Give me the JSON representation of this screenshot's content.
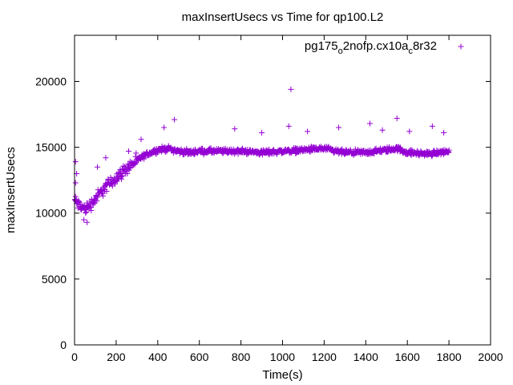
{
  "chart_data": {
    "type": "scatter",
    "title": "maxInsertUsecs vs Time for qp100.L2",
    "xlabel": "Time(s)",
    "ylabel": "maxInsertUsecs",
    "xlim": [
      0,
      2000
    ],
    "ylim": [
      0,
      23500
    ],
    "x_ticks": [
      0,
      200,
      400,
      600,
      800,
      1000,
      1200,
      1400,
      1600,
      1800,
      2000
    ],
    "y_ticks": [
      0,
      5000,
      10000,
      15000,
      20000
    ],
    "grid": false,
    "legend_position": "top-right",
    "marker": "plus",
    "series": [
      {
        "name": "pg175_o2nofp.cx10a_c8r32",
        "name_parts": {
          "a": "pg175",
          "b": "o",
          "c": "2nofp.cx10a",
          "d": "c",
          "e": "8r32"
        },
        "color": "#9400d3",
        "trend": [
          [
            0,
            11000
          ],
          [
            20,
            10600
          ],
          [
            50,
            10300
          ],
          [
            80,
            10700
          ],
          [
            110,
            11300
          ],
          [
            150,
            12000
          ],
          [
            200,
            12700
          ],
          [
            250,
            13400
          ],
          [
            300,
            14000
          ],
          [
            350,
            14500
          ],
          [
            400,
            14800
          ],
          [
            450,
            14900
          ],
          [
            500,
            14700
          ],
          [
            550,
            14600
          ],
          [
            600,
            14700
          ],
          [
            700,
            14700
          ],
          [
            800,
            14700
          ],
          [
            900,
            14600
          ],
          [
            1000,
            14700
          ],
          [
            1100,
            14800
          ],
          [
            1200,
            14900
          ],
          [
            1250,
            14700
          ],
          [
            1300,
            14600
          ],
          [
            1400,
            14600
          ],
          [
            1500,
            14800
          ],
          [
            1550,
            14900
          ],
          [
            1600,
            14600
          ],
          [
            1700,
            14500
          ],
          [
            1800,
            14700
          ]
        ],
        "x_range": [
          0,
          1800
        ],
        "sample_interval": 2,
        "noise": 300,
        "outliers": [
          [
            1040,
            19400
          ],
          [
            1030,
            16600
          ],
          [
            1550,
            17200
          ],
          [
            1420,
            16800
          ],
          [
            1610,
            16200
          ],
          [
            480,
            17100
          ],
          [
            430,
            16500
          ],
          [
            770,
            16400
          ],
          [
            900,
            16100
          ],
          [
            1120,
            16200
          ],
          [
            1270,
            16500
          ],
          [
            1720,
            16600
          ],
          [
            1775,
            16100
          ],
          [
            1480,
            16300
          ],
          [
            5,
            13900
          ],
          [
            5,
            12300
          ],
          [
            10,
            13000
          ],
          [
            60,
            9300
          ],
          [
            45,
            9500
          ],
          [
            110,
            13500
          ],
          [
            150,
            14200
          ],
          [
            260,
            14700
          ],
          [
            320,
            15600
          ]
        ]
      }
    ]
  }
}
